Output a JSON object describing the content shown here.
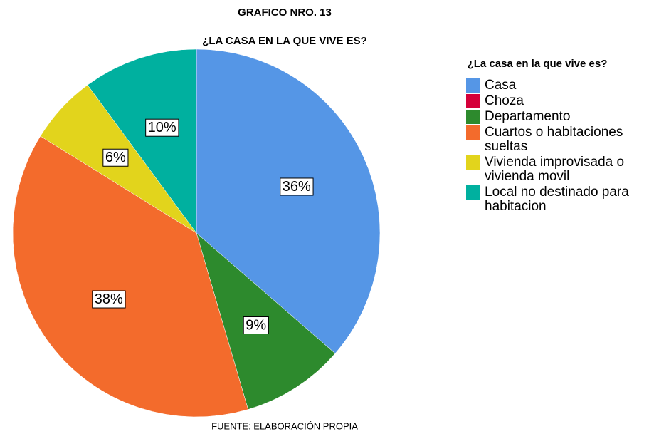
{
  "chart_data": {
    "type": "pie",
    "title": "GRAFICO NRO. 13",
    "subtitle": "¿LA CASA EN LA QUE VIVE ES?",
    "legend_title": "¿La casa en la que vive es?",
    "footer": "FUENTE: ELABORACIÓN PROPIA",
    "categories": [
      "Casa",
      "Choza",
      "Departamento",
      "Cuartos o habitaciones sueltas",
      "Vivienda improvisada o vivienda movil",
      "Local no destinado para habitacion"
    ],
    "values": [
      36,
      0,
      9,
      38,
      6,
      10
    ],
    "value_labels": [
      "36%",
      null,
      "9%",
      "38%",
      "6%",
      "10%"
    ],
    "colors": [
      "#5596e6",
      "#d5003a",
      "#2d8a2d",
      "#f36b2c",
      "#e2d41c",
      "#00b09f"
    ],
    "legend": "right"
  }
}
